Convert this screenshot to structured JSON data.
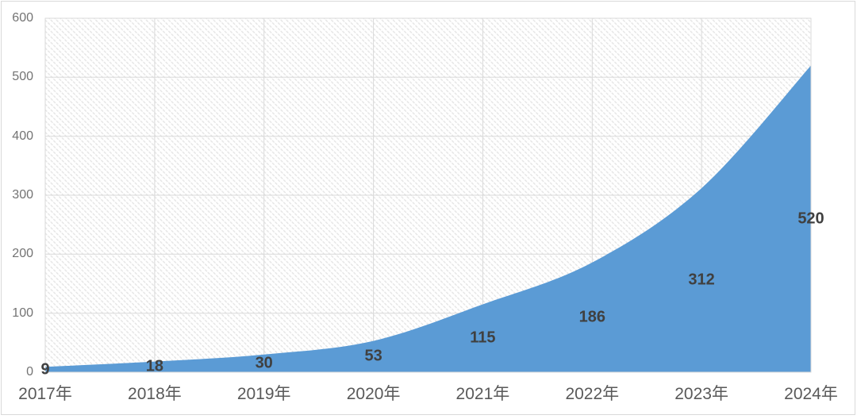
{
  "chart_data": {
    "type": "area",
    "title": "",
    "xlabel": "",
    "ylabel": "",
    "categories": [
      "2017年",
      "2018年",
      "2019年",
      "2020年",
      "2021年",
      "2022年",
      "2023年",
      "2024年"
    ],
    "values": [
      9,
      18,
      30,
      53,
      115,
      186,
      312,
      520
    ],
    "data_point_labels": [
      "9",
      "18",
      "30",
      "53",
      "115",
      "186",
      "312",
      "520"
    ],
    "y_tick_labels": [
      "0",
      "100",
      "200",
      "300",
      "400",
      "500",
      "600"
    ],
    "y_tick_values": [
      0,
      100,
      200,
      300,
      400,
      500,
      600
    ],
    "ylim": [
      0,
      600
    ],
    "smooth_line": true,
    "legend": "none",
    "grid": "both",
    "plot_bg_pattern": "diagonal-hatch",
    "data_label_position": "center-of-band",
    "colors": {
      "area_fill": "#5B9BD5",
      "data_label": "#404040",
      "x_tick_label": "#595959",
      "y_tick_label": "#737373",
      "gridline": "#D9D9D9",
      "plot_border": "#D9D9D9",
      "chart_border": "#D9D9D9",
      "hatch_line": "#E4E4E4",
      "background": "#FFFFFF"
    }
  }
}
